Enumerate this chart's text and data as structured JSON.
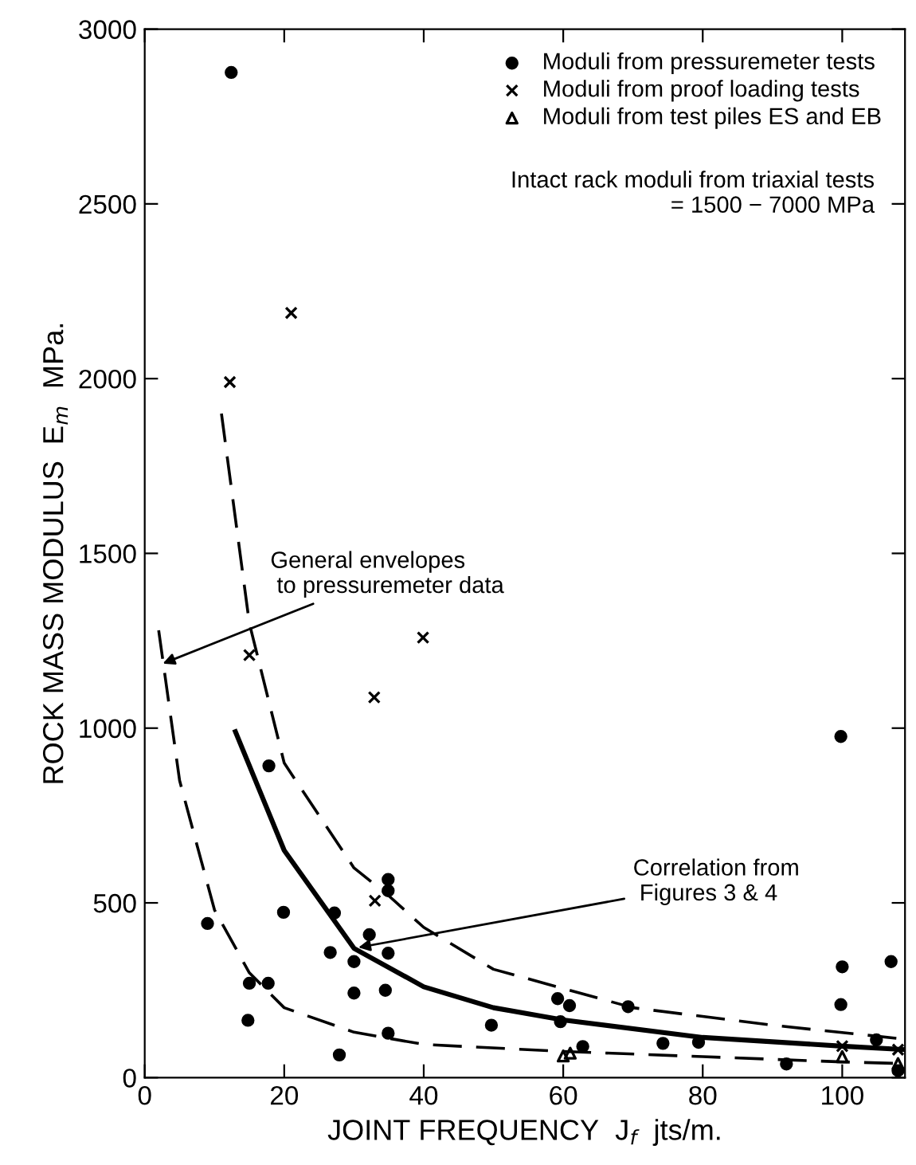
{
  "chart_data": {
    "type": "scatter",
    "xlabel": "JOINT FREQUENCY  J$_{f}$  jts/m.",
    "ylabel": "ROCK MASS MODULUS  E$_{m}$  MPa.",
    "xlim": [
      0,
      109
    ],
    "ylim": [
      0,
      3000
    ],
    "xticks": [
      0,
      20,
      40,
      60,
      80,
      100
    ],
    "yticks": [
      0,
      500,
      1000,
      1500,
      2000,
      2500,
      3000
    ],
    "grid": false,
    "legend": "top right",
    "series": [
      {
        "name": "Moduli from pressuremeter tests",
        "marker": "circle",
        "color": "#000000",
        "x": [
          9.0,
          12.4,
          15,
          14.8,
          17.7,
          17.8,
          19.9,
          26.6,
          27.2,
          27.9,
          30,
          30,
          32.2,
          34.9,
          34.9,
          34.9,
          34.5,
          34.9,
          49.7,
          59.2,
          60.9,
          59.6,
          62.8,
          69.3,
          74.3,
          79.4,
          92,
          99.8,
          100,
          99.8,
          107,
          104.9,
          108
        ],
        "values": [
          441,
          2876,
          270,
          164,
          270,
          892,
          473,
          358,
          471,
          65,
          332,
          242,
          409,
          567,
          535,
          356,
          250,
          127,
          150,
          226,
          206,
          160,
          89,
          203,
          98,
          101,
          39,
          976,
          317,
          209,
          332,
          108,
          20
        ]
      },
      {
        "name": "Moduli from proof loading tests",
        "marker": "cross",
        "color": "#000000",
        "x": [
          12.2,
          21,
          15,
          39.9,
          32.9,
          33,
          100,
          108
        ],
        "values": [
          1990,
          2188,
          1209,
          1259,
          1088,
          506,
          90,
          80
        ]
      },
      {
        "name": "Moduli from test piles ES and EB",
        "marker": "triangle",
        "color": "#000000",
        "x": [
          60,
          61,
          100,
          108
        ],
        "values": [
          62,
          70,
          60,
          40
        ]
      },
      {
        "type": "line",
        "line_style": "solid",
        "color": "#000000",
        "x": [
          13,
          20,
          30,
          40,
          50,
          60,
          80,
          100,
          109
        ],
        "values": [
          990,
          650,
          370,
          260,
          200,
          165,
          115,
          90,
          80
        ]
      },
      {
        "type": "line",
        "line_style": "dashed",
        "color": "#000000",
        "x": [
          11,
          15,
          20,
          30,
          35,
          40,
          50,
          70,
          90,
          109
        ],
        "values": [
          1900,
          1300,
          900,
          600,
          520,
          430,
          310,
          200,
          150,
          110
        ]
      },
      {
        "type": "line",
        "line_style": "dashed",
        "color": "#000000",
        "x": [
          2,
          5,
          10,
          15,
          20,
          30,
          40,
          60,
          80,
          100,
          109
        ],
        "values": [
          1280,
          850,
          480,
          300,
          200,
          130,
          95,
          75,
          60,
          45,
          40
        ]
      }
    ],
    "annotations": [
      "Intact rack moduli from triaxial tests\n= 1500 − 7000 MPa",
      {
        "text": "General envelopes\n to pressuremeter data",
        "x": 2,
        "y": 1180
      },
      {
        "text": "Correlation from\n Figures 3 & 4",
        "x": 30,
        "y": 370
      }
    ]
  }
}
